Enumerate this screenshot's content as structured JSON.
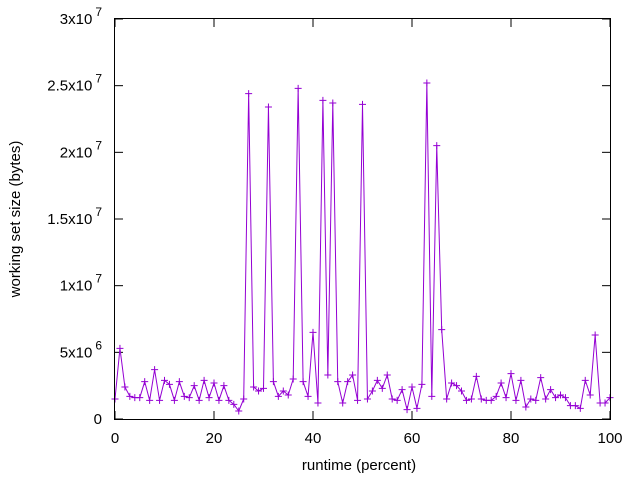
{
  "chart_data": {
    "type": "line",
    "xlabel": "runtime (percent)",
    "ylabel": "working set size (bytes)",
    "xlim": [
      0,
      100
    ],
    "ylim": [
      0,
      30000000
    ],
    "grid": false,
    "legend": "none",
    "marker": "+",
    "color": "#9400d3",
    "x_ticks": [
      {
        "value": 0,
        "label": "0"
      },
      {
        "value": 20,
        "label": "20"
      },
      {
        "value": 40,
        "label": "40"
      },
      {
        "value": 60,
        "label": "60"
      },
      {
        "value": 80,
        "label": "80"
      },
      {
        "value": 100,
        "label": "100"
      }
    ],
    "y_ticks": [
      {
        "value": 0,
        "label": "0",
        "mant": "0",
        "exp": ""
      },
      {
        "value": 5000000,
        "label": "5x10^6",
        "mant": "5x10",
        "exp": "6"
      },
      {
        "value": 10000000,
        "label": "1x10^7",
        "mant": "1x10",
        "exp": "7"
      },
      {
        "value": 15000000,
        "label": "1.5x10^7",
        "mant": "1.5x10",
        "exp": "7"
      },
      {
        "value": 20000000,
        "label": "2x10^7",
        "mant": "2x10",
        "exp": "7"
      },
      {
        "value": 25000000,
        "label": "2.5x10^7",
        "mant": "2.5x10",
        "exp": "7"
      },
      {
        "value": 30000000,
        "label": "3x10^7",
        "mant": "3x10",
        "exp": "7"
      }
    ],
    "series": [
      {
        "x": [
          0,
          1,
          2,
          3,
          4,
          5,
          6,
          7,
          8,
          9,
          10,
          11,
          12,
          13,
          14,
          15,
          16,
          17,
          18,
          19,
          20,
          21,
          22,
          23,
          24,
          25,
          26,
          27,
          28,
          29,
          30,
          31,
          32,
          33,
          34,
          35,
          36,
          37,
          38,
          39,
          40,
          41,
          42,
          43,
          44,
          45,
          46,
          47,
          48,
          49,
          50,
          51,
          52,
          53,
          54,
          55,
          56,
          57,
          58,
          59,
          60,
          61,
          62,
          63,
          64,
          65,
          66,
          67,
          68,
          69,
          70,
          71,
          72,
          73,
          74,
          75,
          76,
          77,
          78,
          79,
          80,
          81,
          82,
          83,
          84,
          85,
          86,
          87,
          88,
          89,
          90,
          91,
          92,
          93,
          94,
          95,
          96,
          97,
          98,
          99,
          100
        ],
        "y": [
          1500000,
          5300000,
          2400000,
          1700000,
          1600000,
          1600000,
          2800000,
          1400000,
          3700000,
          1400000,
          2900000,
          2600000,
          1400000,
          2800000,
          1700000,
          1600000,
          2500000,
          1400000,
          2900000,
          1600000,
          2700000,
          1400000,
          2500000,
          1400000,
          1100000,
          600000,
          1500000,
          24400000,
          2400000,
          2100000,
          2300000,
          23400000,
          2800000,
          1700000,
          2100000,
          1800000,
          3000000,
          24800000,
          2800000,
          1700000,
          6500000,
          1200000,
          23900000,
          3300000,
          23700000,
          2800000,
          1200000,
          2800000,
          3300000,
          1400000,
          23600000,
          1500000,
          2100000,
          2900000,
          2300000,
          3300000,
          1500000,
          1400000,
          2200000,
          700000,
          2400000,
          800000,
          2600000,
          25200000,
          1700000,
          20500000,
          6700000,
          1500000,
          2700000,
          2500000,
          2100000,
          1400000,
          1500000,
          3200000,
          1500000,
          1400000,
          1400000,
          1700000,
          2700000,
          1600000,
          3400000,
          1400000,
          2900000,
          900000,
          1500000,
          1400000,
          3100000,
          1500000,
          2200000,
          1600000,
          1800000,
          1600000,
          1000000,
          1000000,
          800000,
          2900000,
          1800000,
          6300000,
          1200000,
          1200000,
          1600000
        ]
      }
    ]
  }
}
